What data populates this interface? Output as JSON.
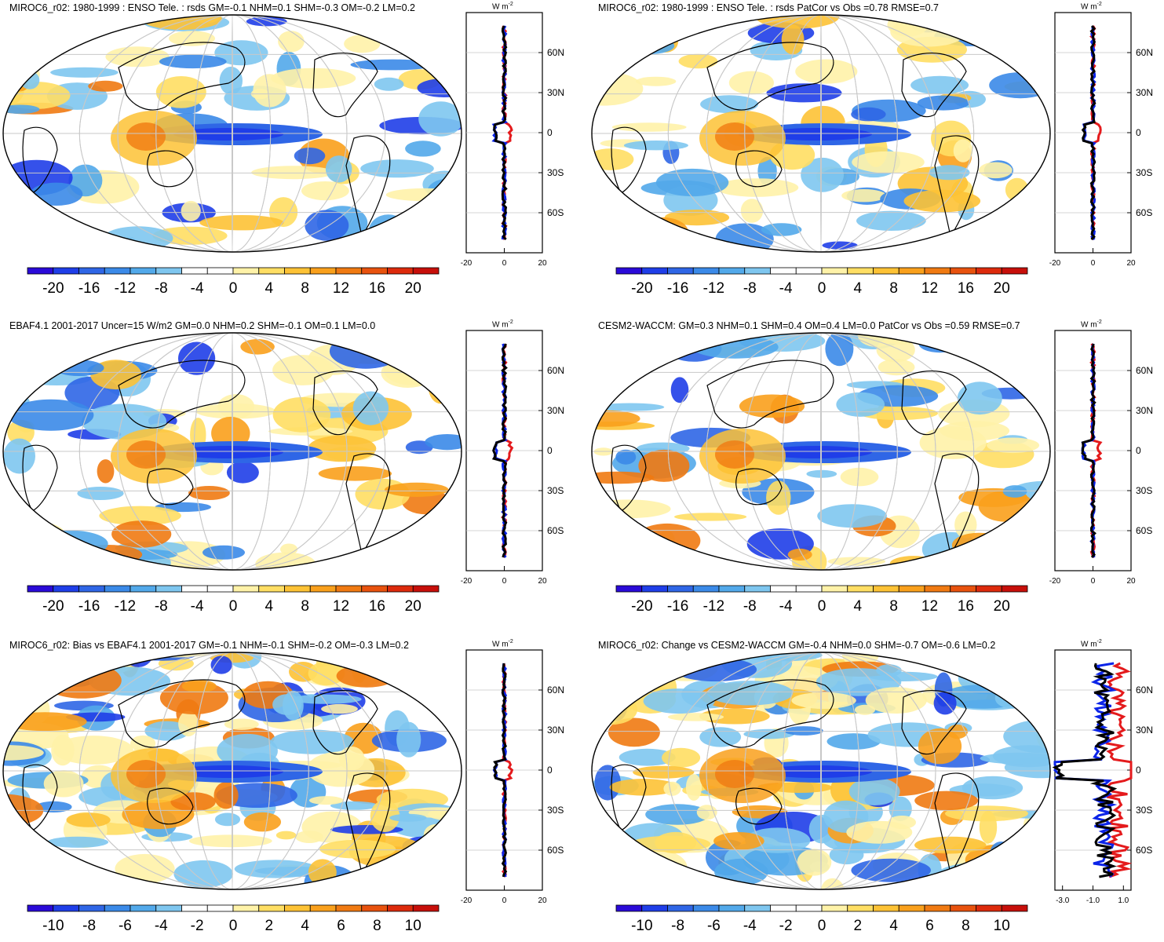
{
  "panels": [
    {
      "title": "MIROC6_r02: 1980-1999 : ENSO Tele. : rsds GM=-0.1 NHM=0.1 SHM=-0.3 OM=-0.2 LM=0.2",
      "colorbar_labels": [
        "-20",
        "-16",
        "-12",
        "-8",
        "-4",
        "0",
        "4",
        "8",
        "12",
        "16",
        "20"
      ],
      "zonal_xticks": [
        "-20",
        "0",
        "20"
      ],
      "zonal_xrange": [
        -20,
        20
      ]
    },
    {
      "title": "MIROC6_r02: 1980-1999 : ENSO Tele. : rsds PatCor vs Obs =0.78 RMSE=0.7",
      "colorbar_labels": [
        "-20",
        "-16",
        "-12",
        "-8",
        "-4",
        "0",
        "4",
        "8",
        "12",
        "16",
        "20"
      ],
      "zonal_xticks": [
        "-20",
        "0",
        "20"
      ],
      "zonal_xrange": [
        -20,
        20
      ]
    },
    {
      "title": "EBAF4.1 2001-2017 Uncer=15 W/m2 GM=0.0 NHM=0.2 SHM=-0.1 OM=0.1 LM=0.0",
      "colorbar_labels": [
        "-20",
        "-16",
        "-12",
        "-8",
        "-4",
        "0",
        "4",
        "8",
        "12",
        "16",
        "20"
      ],
      "zonal_xticks": [
        "-20",
        "0",
        "20"
      ],
      "zonal_xrange": [
        -20,
        20
      ]
    },
    {
      "title": "CESM2-WACCM: GM=0.3 NHM=0.1 SHM=0.4 OM=0.4 LM=0.0 PatCor vs Obs =0.59 RMSE=0.7",
      "colorbar_labels": [
        "-20",
        "-16",
        "-12",
        "-8",
        "-4",
        "0",
        "4",
        "8",
        "12",
        "16",
        "20"
      ],
      "zonal_xticks": [
        "-20",
        "0",
        "20"
      ],
      "zonal_xrange": [
        -20,
        20
      ]
    },
    {
      "title": "MIROC6_r02: Bias vs EBAF4.1 2001-2017 GM=-0.1 NHM=-0.1 SHM=-0.2 OM=-0.3 LM=0.2",
      "colorbar_labels": [
        "-10",
        "-8",
        "-6",
        "-4",
        "-2",
        "0",
        "2",
        "4",
        "6",
        "8",
        "10"
      ],
      "zonal_xticks": [
        "-20",
        "0",
        "20"
      ],
      "zonal_xrange": [
        -20,
        20
      ]
    },
    {
      "title": "MIROC6_r02: Change vs CESM2-WACCM GM=-0.4 NHM=0.0 SHM=-0.7 OM=-0.6 LM=0.2",
      "colorbar_labels": [
        "-10",
        "-8",
        "-6",
        "-4",
        "-2",
        "0",
        "2",
        "4",
        "6",
        "8",
        "10"
      ],
      "zonal_xticks": [
        "-3.0",
        "-1.0",
        "1.0"
      ],
      "zonal_xrange": [
        -3.5,
        1.5
      ]
    }
  ],
  "units_label": "W m",
  "units_exp": "-2",
  "lat_labels": [
    "60N",
    "30N",
    "0",
    "30S",
    "60S"
  ],
  "colors": {
    "colorbar": [
      "#2a0ad8",
      "#1f3ee8",
      "#2f66e6",
      "#3b8ae8",
      "#52a9ea",
      "#7ec6ef",
      "#ffffff",
      "#ffffff",
      "#fff2a8",
      "#ffde63",
      "#fdc235",
      "#f9a01c",
      "#f07a12",
      "#e8520e",
      "#dd2a0c",
      "#c70f0a"
    ],
    "obs_line": "#e41a1c",
    "model_line": "#0b24e8",
    "ref_line": "#000000",
    "grid": "#c8c8c8"
  }
}
